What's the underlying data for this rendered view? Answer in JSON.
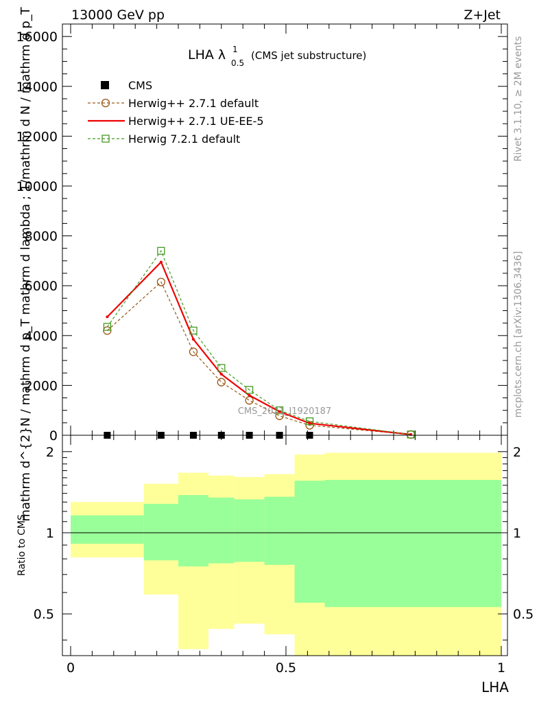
{
  "header": {
    "left": "13000 GeV pp",
    "right": "Z+Jet"
  },
  "side_labels": {
    "rivet": "Rivet 3.1.10, ≥ 2M events",
    "mcplots": "mcplots.cern.ch [arXiv:1306.3436]"
  },
  "watermark": "CMS_2021_I1920187",
  "chart_data": [
    {
      "type": "line",
      "title_main": "LHA λ",
      "title_sup": "1",
      "title_sub": "0.5",
      "title_tail": "(CMS jet substructure)",
      "ylabel_lines": [
        "1",
        "mathrm d N",
        "mathrm d N / mathrm d p",
        "T",
        "mathrm d",
        "mathrm d p",
        "T",
        "mathrm d lambda",
        "mathrm d^{2}N"
      ],
      "ylabel_text": "mathrm d^{2}N / mathrm d p_T mathrm d lambda ; 1/mathrm d N / mathrm d p_T",
      "ylim": [
        0,
        16500
      ],
      "yticks": [
        0,
        2000,
        4000,
        6000,
        8000,
        10000,
        12000,
        14000,
        16000
      ],
      "ytick_labels": [
        "0",
        "2000",
        "4000",
        "6000",
        "8000",
        "10000",
        "12000",
        "14000",
        "16000"
      ],
      "xlim": [
        -0.02,
        1.0
      ],
      "legend_position": "top-left",
      "series": [
        {
          "name": "CMS",
          "color": "#000000",
          "style": "points-square",
          "x": [
            0.085,
            0.21,
            0.285,
            0.35,
            0.415,
            0.485,
            0.555
          ],
          "values": [
            0,
            0,
            0,
            0,
            0,
            0,
            0
          ]
        },
        {
          "name": "Herwig++ 2.7.1 default",
          "color": "#995511",
          "style": "dashed-circle",
          "x": [
            0.085,
            0.21,
            0.285,
            0.35,
            0.415,
            0.485,
            0.555,
            0.79
          ],
          "values": [
            4200,
            6150,
            3350,
            2130,
            1400,
            780,
            400,
            30
          ]
        },
        {
          "name": "Herwig++ 2.7.1 UE-EE-5",
          "color": "#ee0000",
          "style": "solid",
          "x": [
            0.085,
            0.21,
            0.285,
            0.35,
            0.415,
            0.485,
            0.555,
            0.79
          ],
          "values": [
            4750,
            6950,
            3850,
            2450,
            1600,
            950,
            480,
            30
          ]
        },
        {
          "name": "Herwig 7.2.1 default",
          "color": "#449922",
          "style": "dashed-square",
          "x": [
            0.085,
            0.21,
            0.285,
            0.35,
            0.415,
            0.485,
            0.555,
            0.79
          ],
          "values": [
            4350,
            7400,
            4200,
            2700,
            1820,
            1000,
            560,
            30
          ]
        }
      ]
    },
    {
      "type": "area",
      "ylabel": "Ratio to CMS",
      "xlabel": "LHA",
      "xlim": [
        -0.02,
        1.0
      ],
      "ylim": [
        0.35,
        2.3
      ],
      "yticks": [
        0.5,
        1,
        2
      ],
      "ytick_labels": [
        "0.5",
        "1",
        "2"
      ],
      "xticks": [
        0,
        0.5,
        1
      ],
      "xtick_labels": [
        "0",
        "0.5",
        "1"
      ],
      "reference_line": 1,
      "bins": [
        {
          "x0": 0.0,
          "x1": 0.17,
          "yellow": [
            0.81,
            1.3
          ],
          "green": [
            0.91,
            1.16
          ]
        },
        {
          "x0": 0.17,
          "x1": 0.25,
          "yellow": [
            0.59,
            1.52
          ],
          "green": [
            0.79,
            1.28
          ]
        },
        {
          "x0": 0.25,
          "x1": 0.32,
          "yellow": [
            0.37,
            1.67
          ],
          "green": [
            0.75,
            1.38
          ]
        },
        {
          "x0": 0.32,
          "x1": 0.38,
          "yellow": [
            0.44,
            1.63
          ],
          "green": [
            0.77,
            1.35
          ]
        },
        {
          "x0": 0.38,
          "x1": 0.45,
          "yellow": [
            0.46,
            1.61
          ],
          "green": [
            0.78,
            1.33
          ]
        },
        {
          "x0": 0.45,
          "x1": 0.52,
          "yellow": [
            0.42,
            1.65
          ],
          "green": [
            0.76,
            1.36
          ]
        },
        {
          "x0": 0.52,
          "x1": 0.59,
          "yellow": [
            0.35,
            1.95
          ],
          "green": [
            0.55,
            1.56
          ]
        },
        {
          "x0": 0.59,
          "x1": 1.0,
          "yellow": [
            0.35,
            1.98
          ],
          "green": [
            0.53,
            1.57
          ]
        }
      ],
      "colors": {
        "yellow": "#ffff99",
        "green": "#99ff99"
      }
    }
  ]
}
